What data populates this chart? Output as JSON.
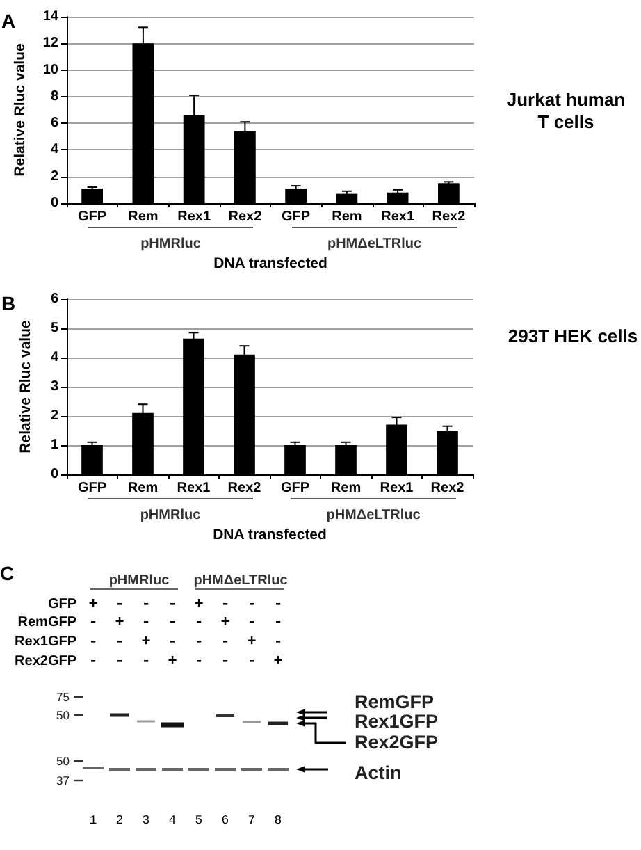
{
  "chart_data": [
    {
      "type": "bar",
      "title": "A",
      "ylabel": "Relative Rluc value",
      "xlabel": "DNA transfected",
      "categories": [
        "GFP",
        "Rem",
        "Rex1",
        "Rex2",
        "GFP",
        "Rem",
        "Rex1",
        "Rex2"
      ],
      "values": [
        1.1,
        12.0,
        6.6,
        5.4,
        1.1,
        0.7,
        0.8,
        1.5
      ],
      "errors": [
        0.1,
        1.2,
        1.5,
        0.7,
        0.2,
        0.2,
        0.2,
        0.1
      ],
      "color": "#000000",
      "ylim": [
        0,
        14
      ],
      "yticks": [
        0,
        2,
        4,
        6,
        8,
        10,
        12,
        14
      ],
      "grid": "y",
      "annotations": [
        "pHMRluc",
        "pHMΔeLTRluc",
        "Jurkat human T cells"
      ]
    },
    {
      "type": "bar",
      "title": "B",
      "ylabel": "Relative Rluc value",
      "xlabel": "DNA transfected",
      "categories": [
        "GFP",
        "Rem",
        "Rex1",
        "Rex2",
        "GFP",
        "Rem",
        "Rex1",
        "Rex2"
      ],
      "values": [
        1.0,
        2.1,
        4.65,
        4.1,
        1.0,
        1.0,
        1.7,
        1.5
      ],
      "errors": [
        0.1,
        0.3,
        0.2,
        0.3,
        0.1,
        0.1,
        0.25,
        0.15
      ],
      "color": "#000000",
      "ylim": [
        0,
        6
      ],
      "yticks": [
        0,
        1,
        2,
        3,
        4,
        5,
        6
      ],
      "grid": "y",
      "annotations": [
        "pHMRluc",
        "pHMΔeLTRluc",
        "293T HEK cells"
      ]
    },
    {
      "type": "other",
      "title": "C",
      "annotations": [
        "pHMRluc",
        "pHMΔeLTRluc",
        "GFP",
        "+ - - - + - - -",
        "RemGFP",
        "- + - - - + - -",
        "Rex1GFP",
        "- - + - - - + -",
        "Rex2GFP",
        "- - - + - - - +",
        "75",
        "50",
        "50",
        "37",
        "RemGFP",
        "Rex1GFP",
        "Rex2GFP",
        "Actin",
        "1 2 3 4 5 6 7 8"
      ]
    }
  ]
}
